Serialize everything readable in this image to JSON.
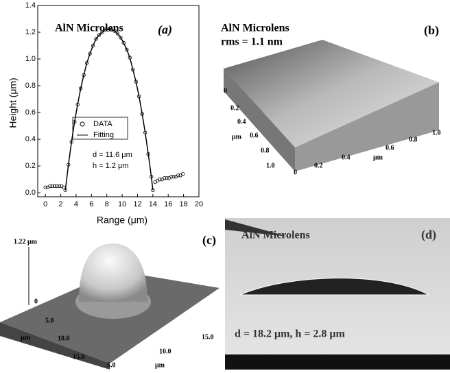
{
  "chart_data": {
    "type": "scatter-line",
    "title": "AlN Microlens",
    "panel_label": "(a)",
    "x_label": "Range (μm)",
    "y_label": "Height (μm)",
    "annotations": [
      "d = 11.6 μm",
      "h = 1.2 μm"
    ],
    "xlim": [
      -1,
      20
    ],
    "ylim": [
      -0.03,
      1.4
    ],
    "xticks": [
      0,
      2,
      4,
      6,
      8,
      10,
      12,
      14,
      16,
      18,
      20
    ],
    "yticks": [
      {
        "value": 0,
        "label": "0.0"
      },
      0.2,
      0.4,
      0.6,
      0.8,
      {
        "value": 1,
        "label": "1.0"
      },
      1.2,
      1.4
    ],
    "legend": "center-left",
    "series": [
      {
        "name": "DATA",
        "style": "circle",
        "color": "#000000",
        "x": [
          0,
          0.3,
          0.6,
          0.9,
          1.2,
          1.5,
          1.8,
          2.1,
          2.4,
          2.6,
          3.0,
          3.4,
          3.8,
          4.2,
          4.6,
          5.0,
          5.4,
          5.8,
          6.2,
          6.6,
          7.0,
          7.4,
          7.8,
          8.2,
          8.6,
          9.0,
          9.4,
          9.8,
          10.2,
          10.6,
          11.0,
          11.4,
          11.8,
          12.2,
          12.6,
          13.0,
          13.4,
          13.8,
          14.0,
          14.3,
          14.6,
          14.9,
          15.2,
          15.5,
          15.8,
          16.1,
          16.4,
          16.7,
          17.0,
          17.3,
          17.6,
          17.9
        ],
        "values": [
          0.04,
          0.04,
          0.05,
          0.05,
          0.05,
          0.05,
          0.05,
          0.05,
          0.04,
          0.02,
          0.21,
          0.38,
          0.53,
          0.66,
          0.78,
          0.88,
          0.97,
          1.04,
          1.1,
          1.15,
          1.18,
          1.2,
          1.22,
          1.22,
          1.22,
          1.21,
          1.19,
          1.16,
          1.12,
          1.07,
          1.01,
          0.92,
          0.83,
          0.72,
          0.59,
          0.45,
          0.29,
          0.12,
          0.02,
          0.08,
          0.09,
          0.1,
          0.1,
          0.11,
          0.11,
          0.11,
          0.12,
          0.12,
          0.12,
          0.13,
          0.13,
          0.14
        ]
      },
      {
        "name": "Fitting",
        "style": "line",
        "color": "#000000",
        "x": [
          2.6,
          3.0,
          3.4,
          3.8,
          4.2,
          4.6,
          5.0,
          5.4,
          5.8,
          6.2,
          6.6,
          7.0,
          7.4,
          7.8,
          8.2,
          8.6,
          9.0,
          9.4,
          9.8,
          10.2,
          10.6,
          11.0,
          11.4,
          11.8,
          12.2,
          12.6,
          13.0,
          13.4,
          13.8,
          14.0
        ],
        "values": [
          0.02,
          0.21,
          0.38,
          0.53,
          0.66,
          0.78,
          0.88,
          0.97,
          1.04,
          1.1,
          1.15,
          1.18,
          1.2,
          1.22,
          1.22,
          1.22,
          1.21,
          1.19,
          1.16,
          1.12,
          1.07,
          1.01,
          0.92,
          0.83,
          0.72,
          0.59,
          0.45,
          0.29,
          0.12,
          0.02
        ]
      }
    ]
  },
  "panels": {
    "b": {
      "title": "AlN Microlens",
      "subtitle": "rms = 1.1 nm",
      "label": "(b)",
      "labels": [
        "0",
        "0.2",
        "0.4",
        "μm",
        "0.6",
        "0.8",
        "1.0",
        "0",
        "0.2",
        "0.4",
        "μm",
        "0.6",
        "0.8",
        "1.0"
      ]
    },
    "c": {
      "label": "(c)",
      "labels": [
        "1.22 μm",
        "0",
        "5.0",
        "μm",
        "10.0",
        "15.0",
        "10.0",
        "15.0",
        "5.0",
        "μm"
      ]
    },
    "d": {
      "title": "AlN Microlens",
      "label": "(d)",
      "caption": "d = 18.2 μm, h = 2.8 μm"
    }
  }
}
